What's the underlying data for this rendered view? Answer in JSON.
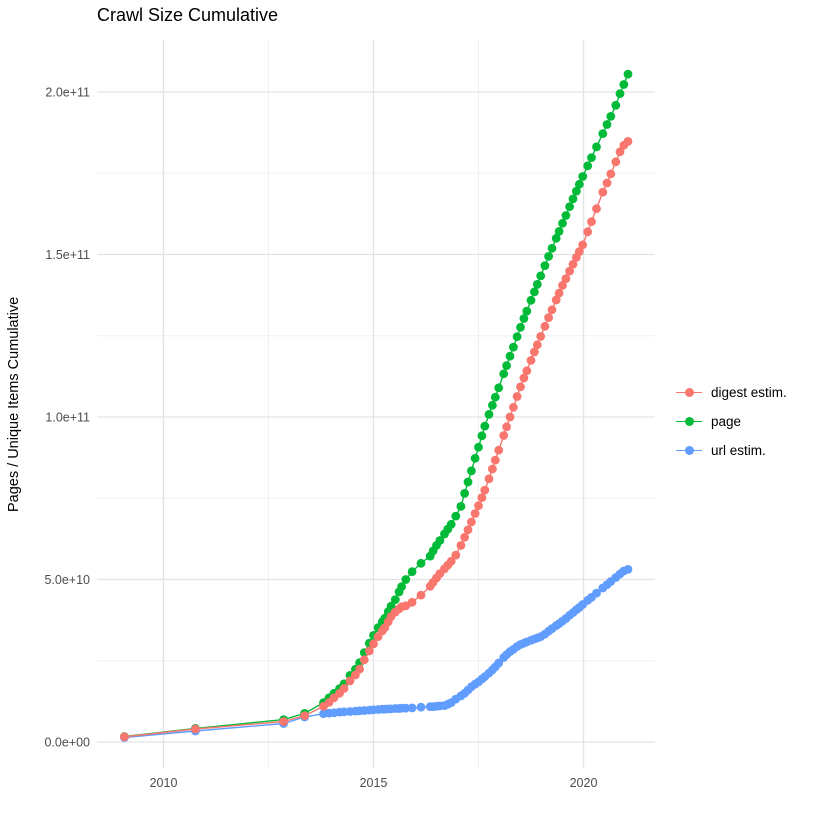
{
  "chart_data": {
    "type": "line",
    "title": "Crawl Size Cumulative",
    "xlabel": "",
    "ylabel": "Pages / Unique Items Cumulative",
    "x_unit": "year (decimal)",
    "value_unit": "items, stored as value × 1e9",
    "x_domain": [
      2008.4,
      2021.7
    ],
    "y_domain_e9": [
      -10,
      216
    ],
    "grid": true,
    "legend_position": "right",
    "x_ticks": [
      {
        "value": 2010,
        "label": "2010"
      },
      {
        "value": 2015,
        "label": "2015"
      },
      {
        "value": 2020,
        "label": "2020"
      }
    ],
    "y_ticks": [
      {
        "value_e9": 0,
        "label": "0.0e+00"
      },
      {
        "value_e9": 50,
        "label": "5.0e+10"
      },
      {
        "value_e9": 100,
        "label": "1.0e+11"
      },
      {
        "value_e9": 150,
        "label": "1.5e+11"
      },
      {
        "value_e9": 200,
        "label": "2.0e+11"
      }
    ],
    "x": [
      2009.07,
      2010.76,
      2012.86,
      2013.36,
      2013.81,
      2013.94,
      2014.06,
      2014.19,
      2014.3,
      2014.44,
      2014.57,
      2014.67,
      2014.78,
      2014.9,
      2015.0,
      2015.11,
      2015.21,
      2015.27,
      2015.35,
      2015.42,
      2015.52,
      2015.61,
      2015.67,
      2015.77,
      2015.92,
      2016.13,
      2016.35,
      2016.42,
      2016.5,
      2016.58,
      2016.69,
      2016.77,
      2016.85,
      2016.96,
      2017.08,
      2017.17,
      2017.25,
      2017.33,
      2017.42,
      2017.5,
      2017.58,
      2017.65,
      2017.75,
      2017.83,
      2017.9,
      2017.98,
      2018.1,
      2018.17,
      2018.25,
      2018.33,
      2018.42,
      2018.5,
      2018.58,
      2018.65,
      2018.75,
      2018.83,
      2018.9,
      2018.98,
      2019.08,
      2019.17,
      2019.25,
      2019.35,
      2019.42,
      2019.5,
      2019.58,
      2019.67,
      2019.75,
      2019.83,
      2019.9,
      2019.98,
      2020.1,
      2020.19,
      2020.31,
      2020.46,
      2020.56,
      2020.65,
      2020.77,
      2020.87,
      2020.96,
      2021.06
    ],
    "series": [
      {
        "name": "digest estim.",
        "color": "#F8766D",
        "values_e9": [
          1.6,
          4.0,
          6.3,
          8.1,
          11.0,
          12.2,
          13.6,
          15.0,
          16.5,
          18.8,
          20.6,
          22.4,
          25.3,
          28.0,
          30.2,
          32.4,
          34.2,
          35.2,
          37.0,
          38.6,
          40.0,
          41.0,
          41.6,
          41.9,
          43.0,
          45.2,
          47.9,
          49.1,
          50.5,
          51.8,
          53.3,
          54.4,
          55.6,
          57.5,
          60.5,
          63.0,
          65.3,
          67.7,
          70.3,
          72.7,
          75.2,
          77.5,
          81.0,
          84.0,
          86.7,
          89.8,
          94.3,
          97.0,
          100.0,
          103.0,
          106.3,
          109.3,
          112.0,
          114.2,
          117.4,
          120.0,
          122.2,
          124.8,
          127.9,
          130.6,
          133.0,
          136.0,
          138.1,
          140.5,
          142.6,
          144.9,
          147.0,
          149.1,
          150.9,
          153.0,
          157.0,
          160.1,
          164.1,
          169.2,
          172.0,
          174.8,
          178.5,
          181.6,
          183.6,
          184.8
        ]
      },
      {
        "name": "page",
        "color": "#00BA38",
        "values_e9": [
          1.7,
          4.2,
          6.9,
          8.8,
          12.1,
          13.6,
          15.0,
          16.4,
          17.9,
          20.5,
          22.4,
          24.4,
          27.5,
          30.4,
          32.8,
          35.2,
          37.0,
          38.1,
          40.1,
          41.8,
          43.8,
          46.2,
          47.8,
          50.0,
          52.4,
          55.0,
          57.2,
          58.8,
          60.5,
          62.0,
          64.0,
          65.5,
          67.0,
          69.5,
          72.5,
          76.5,
          80.0,
          83.4,
          87.3,
          90.7,
          94.2,
          97.2,
          100.8,
          103.6,
          106.1,
          109.0,
          113.3,
          115.8,
          118.7,
          121.5,
          124.7,
          127.6,
          130.3,
          132.6,
          135.9,
          138.5,
          140.8,
          143.4,
          146.6,
          149.4,
          151.9,
          155.0,
          157.1,
          159.6,
          162.0,
          164.7,
          167.1,
          169.5,
          171.6,
          174.0,
          177.3,
          179.8,
          183.1,
          187.2,
          190.0,
          192.5,
          195.9,
          199.5,
          202.3,
          205.5
        ]
      },
      {
        "name": "url estim.",
        "color": "#619CFF",
        "values_e9": [
          1.4,
          3.4,
          5.7,
          7.7,
          8.7,
          8.9,
          9.0,
          9.2,
          9.3,
          9.4,
          9.5,
          9.6,
          9.7,
          9.8,
          9.9,
          10.0,
          10.1,
          10.1,
          10.2,
          10.2,
          10.3,
          10.3,
          10.4,
          10.4,
          10.5,
          10.7,
          10.9,
          10.9,
          11.0,
          11.1,
          11.2,
          11.6,
          12.1,
          13.2,
          14.2,
          15.0,
          16.0,
          17.0,
          17.8,
          18.5,
          19.4,
          20.1,
          21.2,
          22.2,
          23.1,
          24.3,
          26.0,
          26.9,
          27.8,
          28.5,
          29.4,
          30.0,
          30.4,
          30.8,
          31.3,
          31.7,
          32.0,
          32.4,
          33.2,
          34.1,
          34.9,
          35.8,
          36.4,
          37.2,
          38.0,
          39.0,
          39.8,
          40.7,
          41.4,
          42.3,
          43.6,
          44.5,
          45.8,
          47.4,
          48.4,
          49.4,
          50.6,
          51.7,
          52.6,
          53.1
        ]
      }
    ],
    "colors": {
      "digest_estim": "#F8766D",
      "page": "#00BA38",
      "url_estim": "#619CFF",
      "grid_major": "#e3e3e3",
      "grid_minor": "#f0f0f0",
      "tick_text": "#4d4d4d"
    }
  }
}
